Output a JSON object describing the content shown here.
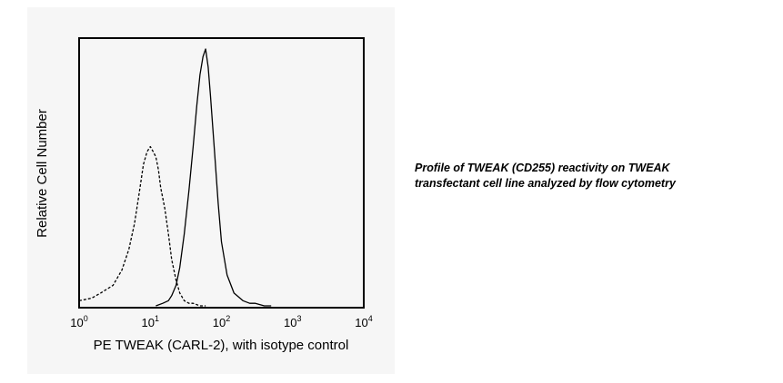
{
  "caption": {
    "line1": "Profile of TWEAK (CD255) reactivity on TWEAK",
    "line2": "transfectant cell line analyzed by flow cytometry"
  },
  "chart_data": {
    "type": "area",
    "xlabel": "PE TWEAK (CARL-2), with isotype control",
    "ylabel": "Relative Cell Number",
    "x_scale": "log",
    "xlim": [
      1,
      10000
    ],
    "ylim": [
      0,
      1
    ],
    "ticks": [
      {
        "base": "10",
        "exp": "0",
        "value": 1
      },
      {
        "base": "10",
        "exp": "1",
        "value": 10
      },
      {
        "base": "10",
        "exp": "2",
        "value": 100
      },
      {
        "base": "10",
        "exp": "3",
        "value": 1000
      },
      {
        "base": "10",
        "exp": "4",
        "value": 10000
      }
    ],
    "grid": false,
    "legend": "none",
    "series": [
      {
        "style": "dashed",
        "color": "#000000",
        "x": [
          1,
          1.5,
          2,
          3,
          4,
          5,
          6,
          7,
          8,
          9,
          10,
          11,
          12,
          13,
          14,
          16,
          18,
          20,
          23,
          26,
          30,
          35,
          40,
          50,
          60
        ],
        "y": [
          0.02,
          0.03,
          0.05,
          0.08,
          0.14,
          0.22,
          0.32,
          0.44,
          0.55,
          0.6,
          0.62,
          0.6,
          0.58,
          0.53,
          0.46,
          0.38,
          0.28,
          0.18,
          0.1,
          0.05,
          0.02,
          0.01,
          0.01,
          0,
          0
        ]
      },
      {
        "style": "solid",
        "color": "#000000",
        "x": [
          12,
          15,
          18,
          20,
          23,
          26,
          30,
          35,
          40,
          45,
          50,
          55,
          60,
          65,
          70,
          80,
          90,
          100,
          120,
          150,
          200,
          250,
          300,
          400,
          500
        ],
        "y": [
          0,
          0.01,
          0.02,
          0.04,
          0.08,
          0.15,
          0.28,
          0.45,
          0.62,
          0.78,
          0.9,
          0.97,
          1.0,
          0.93,
          0.82,
          0.6,
          0.4,
          0.25,
          0.12,
          0.05,
          0.02,
          0.01,
          0.01,
          0,
          0
        ]
      }
    ]
  }
}
